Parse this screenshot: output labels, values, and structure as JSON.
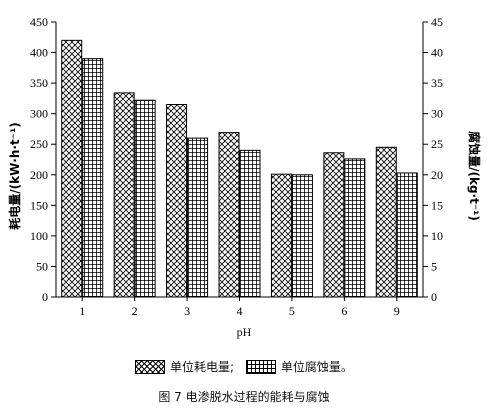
{
  "chart_data": {
    "type": "bar",
    "categories": [
      "1",
      "2",
      "3",
      "4",
      "5",
      "6",
      "9"
    ],
    "xlabel": "pH",
    "ylabel": "耗电量/(kW·h·t⁻¹)",
    "y2label": "腐蚀量/(kg·t⁻¹)",
    "ylim": [
      0,
      450
    ],
    "y2lim": [
      0,
      45
    ],
    "yticks": [
      0,
      50,
      100,
      150,
      200,
      250,
      300,
      350,
      400,
      450
    ],
    "y2ticks": [
      0,
      5,
      10,
      15,
      20,
      25,
      30,
      35,
      40,
      45
    ],
    "series": [
      {
        "name": "单位耗电量;",
        "axis": "left",
        "pattern": "crosshatch",
        "values": [
          420,
          334,
          315,
          269,
          201,
          236,
          245
        ]
      },
      {
        "name": "单位腐蚀量。",
        "axis": "right",
        "pattern": "grid",
        "values": [
          39,
          32.2,
          26,
          24,
          20,
          22.6,
          20.3
        ]
      }
    ],
    "grid": false,
    "legend_position": "bottom"
  },
  "caption": "图 7   电渗脱水过程的能耗与腐蚀"
}
